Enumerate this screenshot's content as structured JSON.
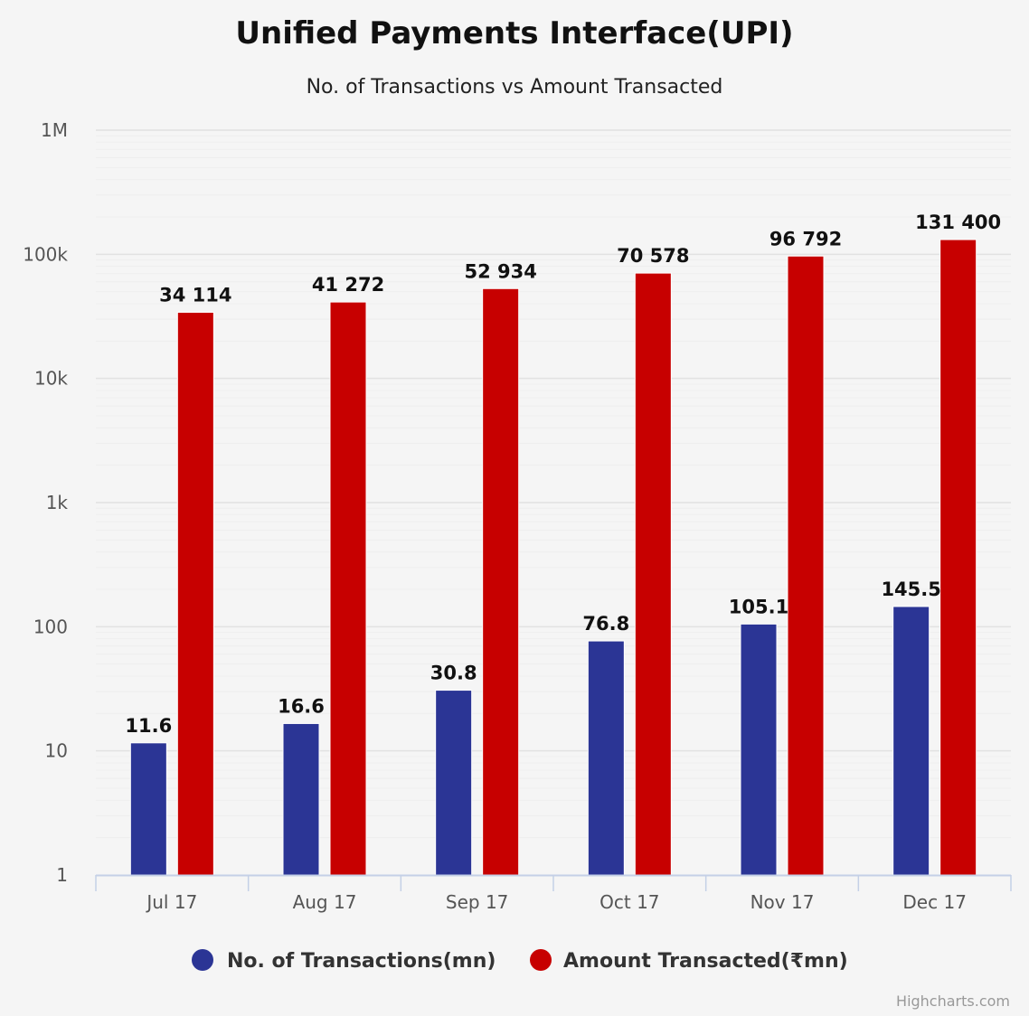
{
  "chart_data": {
    "type": "bar",
    "title": "Unified Payments Interface(UPI)",
    "subtitle": "No. of Transactions vs Amount Transacted",
    "yscale": "log",
    "ylim": [
      1,
      1000000
    ],
    "ytick_values": [
      1,
      10,
      100,
      1000,
      10000,
      100000,
      1000000
    ],
    "ytick_labels": [
      "1",
      "10",
      "100",
      "1k",
      "10k",
      "100k",
      "1M"
    ],
    "grid": true,
    "legend_position": "bottom-center",
    "categories": [
      "Jul 17",
      "Aug 17",
      "Sep 17",
      "Oct 17",
      "Nov 17",
      "Dec 17"
    ],
    "series": [
      {
        "name": "No. of Transactions(mn)",
        "color": "#2b3595",
        "values": [
          11.6,
          16.6,
          30.8,
          76.8,
          105.1,
          145.5
        ],
        "labels": [
          "11.6",
          "16.6",
          "30.8",
          "76.8",
          "105.1",
          "145.5"
        ]
      },
      {
        "name": "Amount Transacted(₹mn)",
        "color": "#c70000",
        "values": [
          34114,
          41272,
          52934,
          70578,
          96792,
          131400
        ],
        "labels": [
          "34 114",
          "41 272",
          "52 934",
          "70 578",
          "96 792",
          "131 400"
        ]
      }
    ]
  },
  "credits": "Highcharts.com"
}
